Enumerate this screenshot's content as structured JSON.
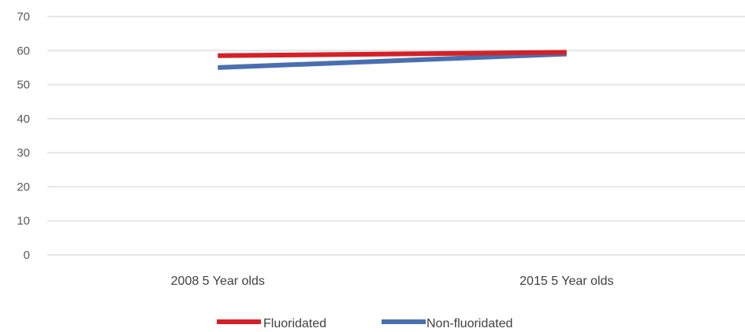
{
  "chart_data": {
    "type": "line",
    "categories": [
      "2008 5 Year olds",
      "2015 5 Year olds"
    ],
    "series": [
      {
        "name": "Fluoridated",
        "values": [
          58.5,
          59.5
        ],
        "color": "#d62027"
      },
      {
        "name": "Non-fluoridated",
        "values": [
          55,
          59
        ],
        "color": "#4a6fb0"
      }
    ],
    "ylim": [
      0,
      70
    ],
    "yticks": [
      0,
      10,
      20,
      30,
      40,
      50,
      60,
      70
    ],
    "grid": true,
    "legend_position": "bottom",
    "title": "",
    "xlabel": "",
    "ylabel": ""
  }
}
